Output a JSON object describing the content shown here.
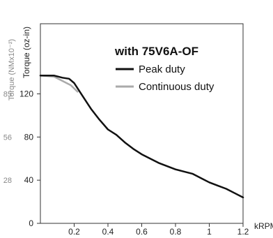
{
  "chart_data": {
    "type": "line",
    "title": "with 75V6A-OF",
    "ylabel": "Torque (oz-in)",
    "ylabel_secondary": "Torque (NMx10⁻²)",
    "xunit": "kRPM",
    "xlim": [
      0,
      1.2
    ],
    "ylim": [
      0,
      185
    ],
    "x_ticks": [
      "0.2",
      "0.4",
      "0.6",
      "0.8",
      "1",
      "1.2"
    ],
    "y_ticks": [
      "0",
      "40",
      "80",
      "120"
    ],
    "y_ticks_secondary": [
      "28",
      "56",
      "85"
    ],
    "grid": false,
    "legend_position": "top-right",
    "series": [
      {
        "name": "Peak duty",
        "color": "#111111",
        "x": [
          0,
          0.08,
          0.13,
          0.17,
          0.2,
          0.25,
          0.3,
          0.35,
          0.4,
          0.45,
          0.5,
          0.55,
          0.6,
          0.7,
          0.8,
          0.85,
          0.9,
          0.95,
          1.0,
          1.05,
          1.1,
          1.15,
          1.2
        ],
        "y": [
          137,
          137,
          135,
          134,
          130,
          118,
          106,
          96,
          87,
          82,
          75,
          69,
          64,
          56,
          50,
          48,
          46,
          42,
          38,
          35,
          32,
          28,
          24
        ]
      },
      {
        "name": "Continuous duty",
        "color": "#aaaaaa",
        "x": [
          0,
          0.08,
          0.13,
          0.18,
          0.22
        ],
        "y": [
          137,
          136,
          132,
          128,
          122
        ]
      }
    ]
  }
}
